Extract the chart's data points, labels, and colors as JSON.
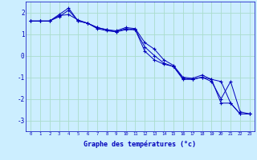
{
  "xlabel": "Graphe des températures (°c)",
  "background_color": "#cceeff",
  "grid_color": "#aaddcc",
  "line_color": "#0000bb",
  "x_ticks": [
    0,
    1,
    2,
    3,
    4,
    5,
    6,
    7,
    8,
    9,
    10,
    11,
    12,
    13,
    14,
    15,
    16,
    17,
    18,
    19,
    20,
    21,
    22,
    23
  ],
  "xlim": [
    -0.5,
    23.5
  ],
  "ylim": [
    -3.5,
    2.5
  ],
  "y_ticks": [
    -3,
    -2,
    -1,
    0,
    1,
    2
  ],
  "series1": {
    "x": [
      0,
      1,
      2,
      3,
      4,
      5,
      6,
      7,
      8,
      9,
      10,
      11,
      12,
      13,
      14,
      15,
      16,
      17,
      18,
      19,
      20,
      21,
      22,
      23
    ],
    "y": [
      1.6,
      1.6,
      1.6,
      1.8,
      2.1,
      1.6,
      1.5,
      1.3,
      1.2,
      1.1,
      1.2,
      1.2,
      0.2,
      -0.2,
      -0.4,
      -0.5,
      -1.1,
      -1.1,
      -1.0,
      -1.1,
      -2.2,
      -2.2,
      -2.7,
      -2.7
    ]
  },
  "series2": {
    "x": [
      0,
      1,
      2,
      3,
      4,
      5,
      6,
      7,
      8,
      9,
      10,
      11,
      12,
      13,
      14,
      15,
      16,
      17,
      18,
      19,
      20,
      21,
      22,
      23
    ],
    "y": [
      1.6,
      1.6,
      1.6,
      1.9,
      2.2,
      1.6,
      1.5,
      1.3,
      1.2,
      1.15,
      1.3,
      1.25,
      0.6,
      0.3,
      -0.2,
      -0.45,
      -1.0,
      -1.05,
      -0.9,
      -1.1,
      -1.2,
      -2.2,
      -2.7,
      -2.7
    ]
  },
  "series3": {
    "x": [
      0,
      1,
      2,
      3,
      4,
      5,
      6,
      7,
      8,
      9,
      10,
      11,
      12,
      13,
      14,
      15,
      16,
      17,
      18,
      19,
      20,
      21,
      22,
      23
    ],
    "y": [
      1.6,
      1.6,
      1.6,
      1.85,
      1.9,
      1.65,
      1.5,
      1.25,
      1.15,
      1.1,
      1.25,
      1.2,
      0.4,
      0.0,
      -0.35,
      -0.5,
      -1.05,
      -1.1,
      -1.0,
      -1.2,
      -2.0,
      -1.2,
      -2.6,
      -2.7
    ]
  }
}
